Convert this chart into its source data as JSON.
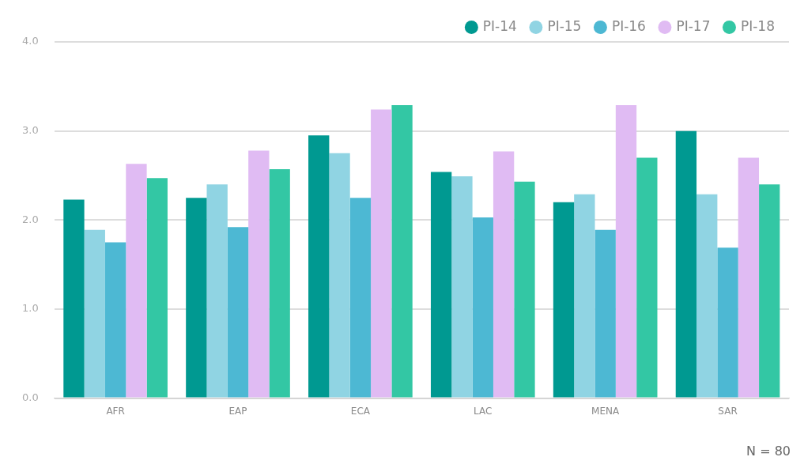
{
  "chart_data": {
    "type": "bar",
    "categories": [
      "AFR",
      "EAP",
      "ECA",
      "LAC",
      "MENA",
      "SAR"
    ],
    "series": [
      {
        "name": "PI-14",
        "color": "#009991",
        "values": [
          2.23,
          2.25,
          2.95,
          2.54,
          2.2,
          3.0
        ]
      },
      {
        "name": "PI-15",
        "color": "#90d4e3",
        "values": [
          1.89,
          2.4,
          2.75,
          2.49,
          2.29,
          2.29
        ]
      },
      {
        "name": "PI-16",
        "color": "#4db8d3",
        "values": [
          1.75,
          1.92,
          2.25,
          2.03,
          1.89,
          1.69
        ]
      },
      {
        "name": "PI-17",
        "color": "#e0bbf3",
        "values": [
          2.63,
          2.78,
          3.24,
          2.77,
          3.29,
          2.7
        ]
      },
      {
        "name": "PI-18",
        "color": "#33c7a4",
        "values": [
          2.47,
          2.57,
          3.29,
          2.43,
          2.7,
          2.4
        ]
      }
    ],
    "ylim": [
      0,
      4
    ],
    "yticks": [
      {
        "value": 0,
        "label": "0.0"
      },
      {
        "value": 1,
        "label": "1.0"
      },
      {
        "value": 2,
        "label": "2.0"
      },
      {
        "value": 3,
        "label": "3.0"
      },
      {
        "value": 4,
        "label": "4.0"
      }
    ],
    "grid": "y",
    "legend": "top right",
    "annotations": [
      "N = 80"
    ]
  }
}
